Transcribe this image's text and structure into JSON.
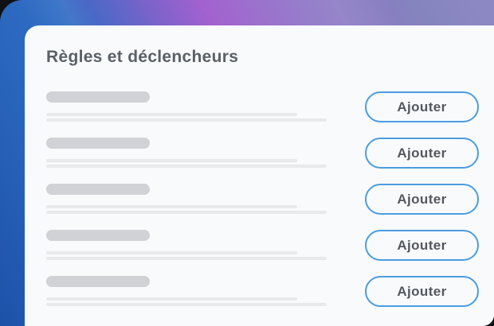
{
  "card": {
    "title": "Règles et déclencheurs"
  },
  "rows": [
    {
      "button_label": "Ajouter"
    },
    {
      "button_label": "Ajouter"
    },
    {
      "button_label": "Ajouter"
    },
    {
      "button_label": "Ajouter"
    },
    {
      "button_label": "Ajouter"
    }
  ],
  "colors": {
    "accent_blue": "#4C9CDF",
    "button_text": "#54585E",
    "title_text": "#5B6067",
    "card_background": "#F8FAFC",
    "skeleton_bar": "#D0D2D5",
    "skeleton_line": "#E8E9EB",
    "gradient_deep_blue": "#1E52A9",
    "gradient_blue": "#2E6CC4",
    "gradient_magenta": "#A361CF",
    "gradient_violet": "#8684BE",
    "page_backdrop": "#101114"
  }
}
